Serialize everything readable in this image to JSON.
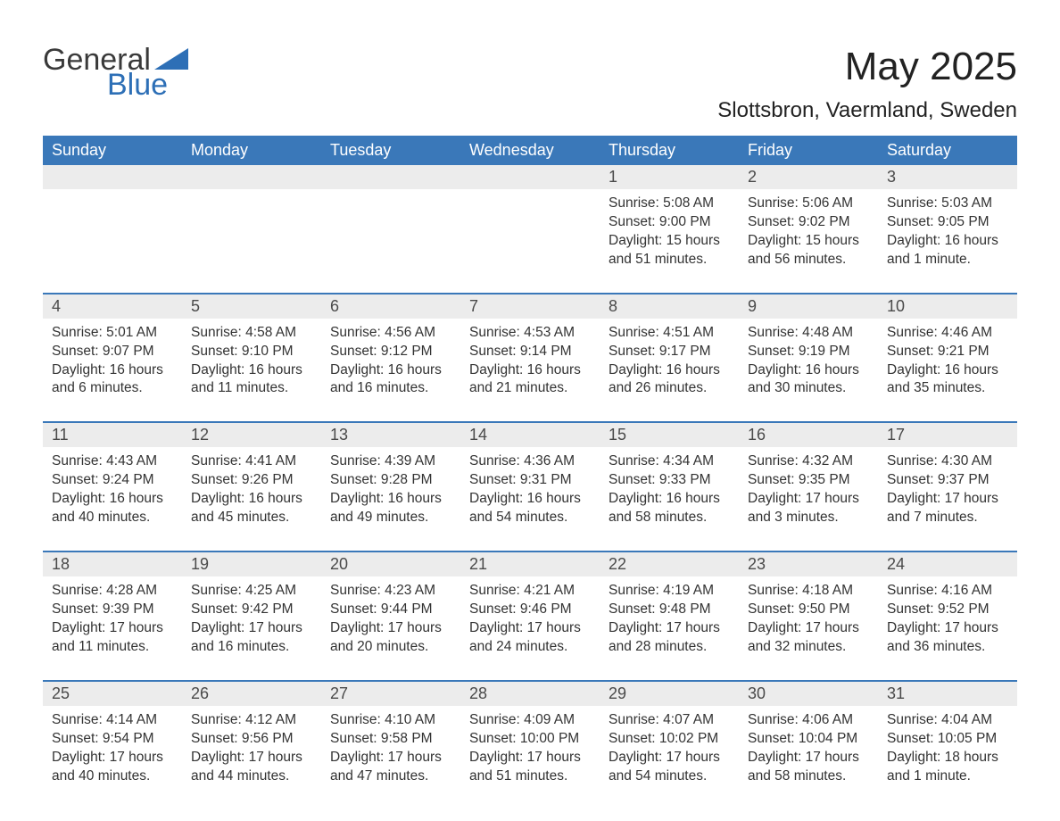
{
  "logo": {
    "text1": "General",
    "text2": "Blue"
  },
  "title": "May 2025",
  "location": "Slottsbron, Vaermland, Sweden",
  "colors": {
    "header_bg": "#3a78b9",
    "header_text": "#ffffff",
    "daynum_bg": "#ececec",
    "daynum_text": "#4a4a4a",
    "body_text": "#333333",
    "rule": "#3a78b9",
    "logo_gray": "#3a3a3a",
    "logo_blue": "#2d6fb6",
    "page_bg": "#ffffff"
  },
  "day_headers": [
    "Sunday",
    "Monday",
    "Tuesday",
    "Wednesday",
    "Thursday",
    "Friday",
    "Saturday"
  ],
  "weeks": [
    {
      "nums": [
        "",
        "",
        "",
        "",
        "1",
        "2",
        "3"
      ],
      "cells": [
        null,
        null,
        null,
        null,
        {
          "sunrise": "5:08 AM",
          "sunset": "9:00 PM",
          "daylight": "15 hours and 51 minutes."
        },
        {
          "sunrise": "5:06 AM",
          "sunset": "9:02 PM",
          "daylight": "15 hours and 56 minutes."
        },
        {
          "sunrise": "5:03 AM",
          "sunset": "9:05 PM",
          "daylight": "16 hours and 1 minute."
        }
      ]
    },
    {
      "nums": [
        "4",
        "5",
        "6",
        "7",
        "8",
        "9",
        "10"
      ],
      "cells": [
        {
          "sunrise": "5:01 AM",
          "sunset": "9:07 PM",
          "daylight": "16 hours and 6 minutes."
        },
        {
          "sunrise": "4:58 AM",
          "sunset": "9:10 PM",
          "daylight": "16 hours and 11 minutes."
        },
        {
          "sunrise": "4:56 AM",
          "sunset": "9:12 PM",
          "daylight": "16 hours and 16 minutes."
        },
        {
          "sunrise": "4:53 AM",
          "sunset": "9:14 PM",
          "daylight": "16 hours and 21 minutes."
        },
        {
          "sunrise": "4:51 AM",
          "sunset": "9:17 PM",
          "daylight": "16 hours and 26 minutes."
        },
        {
          "sunrise": "4:48 AM",
          "sunset": "9:19 PM",
          "daylight": "16 hours and 30 minutes."
        },
        {
          "sunrise": "4:46 AM",
          "sunset": "9:21 PM",
          "daylight": "16 hours and 35 minutes."
        }
      ]
    },
    {
      "nums": [
        "11",
        "12",
        "13",
        "14",
        "15",
        "16",
        "17"
      ],
      "cells": [
        {
          "sunrise": "4:43 AM",
          "sunset": "9:24 PM",
          "daylight": "16 hours and 40 minutes."
        },
        {
          "sunrise": "4:41 AM",
          "sunset": "9:26 PM",
          "daylight": "16 hours and 45 minutes."
        },
        {
          "sunrise": "4:39 AM",
          "sunset": "9:28 PM",
          "daylight": "16 hours and 49 minutes."
        },
        {
          "sunrise": "4:36 AM",
          "sunset": "9:31 PM",
          "daylight": "16 hours and 54 minutes."
        },
        {
          "sunrise": "4:34 AM",
          "sunset": "9:33 PM",
          "daylight": "16 hours and 58 minutes."
        },
        {
          "sunrise": "4:32 AM",
          "sunset": "9:35 PM",
          "daylight": "17 hours and 3 minutes."
        },
        {
          "sunrise": "4:30 AM",
          "sunset": "9:37 PM",
          "daylight": "17 hours and 7 minutes."
        }
      ]
    },
    {
      "nums": [
        "18",
        "19",
        "20",
        "21",
        "22",
        "23",
        "24"
      ],
      "cells": [
        {
          "sunrise": "4:28 AM",
          "sunset": "9:39 PM",
          "daylight": "17 hours and 11 minutes."
        },
        {
          "sunrise": "4:25 AM",
          "sunset": "9:42 PM",
          "daylight": "17 hours and 16 minutes."
        },
        {
          "sunrise": "4:23 AM",
          "sunset": "9:44 PM",
          "daylight": "17 hours and 20 minutes."
        },
        {
          "sunrise": "4:21 AM",
          "sunset": "9:46 PM",
          "daylight": "17 hours and 24 minutes."
        },
        {
          "sunrise": "4:19 AM",
          "sunset": "9:48 PM",
          "daylight": "17 hours and 28 minutes."
        },
        {
          "sunrise": "4:18 AM",
          "sunset": "9:50 PM",
          "daylight": "17 hours and 32 minutes."
        },
        {
          "sunrise": "4:16 AM",
          "sunset": "9:52 PM",
          "daylight": "17 hours and 36 minutes."
        }
      ]
    },
    {
      "nums": [
        "25",
        "26",
        "27",
        "28",
        "29",
        "30",
        "31"
      ],
      "cells": [
        {
          "sunrise": "4:14 AM",
          "sunset": "9:54 PM",
          "daylight": "17 hours and 40 minutes."
        },
        {
          "sunrise": "4:12 AM",
          "sunset": "9:56 PM",
          "daylight": "17 hours and 44 minutes."
        },
        {
          "sunrise": "4:10 AM",
          "sunset": "9:58 PM",
          "daylight": "17 hours and 47 minutes."
        },
        {
          "sunrise": "4:09 AM",
          "sunset": "10:00 PM",
          "daylight": "17 hours and 51 minutes."
        },
        {
          "sunrise": "4:07 AM",
          "sunset": "10:02 PM",
          "daylight": "17 hours and 54 minutes."
        },
        {
          "sunrise": "4:06 AM",
          "sunset": "10:04 PM",
          "daylight": "17 hours and 58 minutes."
        },
        {
          "sunrise": "4:04 AM",
          "sunset": "10:05 PM",
          "daylight": "18 hours and 1 minute."
        }
      ]
    }
  ],
  "labels": {
    "sunrise": "Sunrise: ",
    "sunset": "Sunset: ",
    "daylight": "Daylight: "
  }
}
